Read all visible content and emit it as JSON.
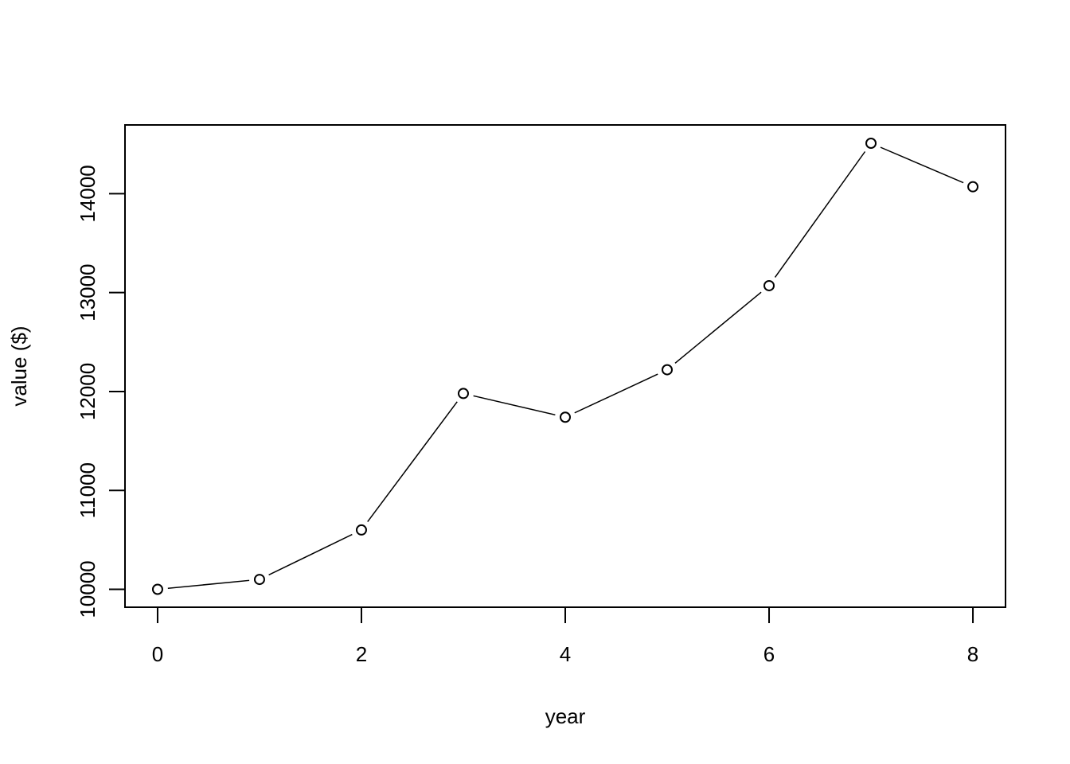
{
  "chart_data": {
    "type": "line",
    "x_label": "year",
    "y_label": "value ($)",
    "x": [
      0,
      1,
      2,
      3,
      4,
      5,
      6,
      7,
      8
    ],
    "series": [
      {
        "color": "#000000",
        "marker": "circle",
        "values": [
          10000,
          10100,
          10600,
          11980,
          11740,
          12220,
          13070,
          14510,
          14070
        ]
      }
    ],
    "xlim": [
      -0.32,
      8.32
    ],
    "xticks": [
      0,
      2,
      4,
      6,
      8
    ],
    "ylim": [
      9819,
      14695
    ],
    "yticks": [
      10000,
      11000,
      12000,
      13000,
      14000
    ],
    "grid": false
  }
}
